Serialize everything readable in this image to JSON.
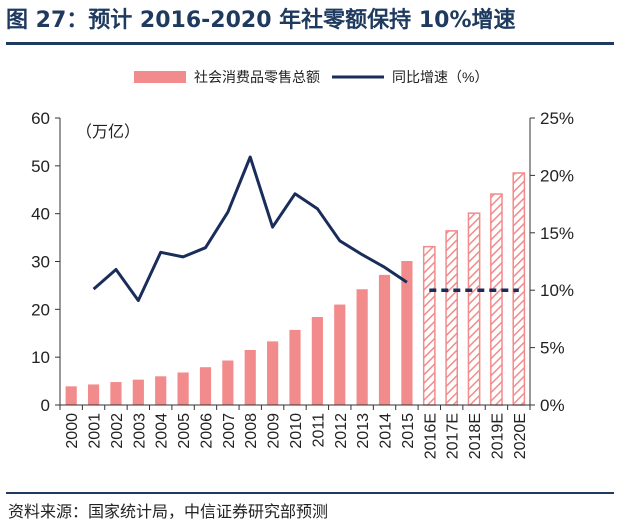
{
  "title": "图 27：预计 2016-2020 年社零额保持 10%增速",
  "source": "资料来源：国家统计局，中信证券研究部预测",
  "chart_data": {
    "type": "bar",
    "categories": [
      "2000",
      "2001",
      "2002",
      "2003",
      "2004",
      "2005",
      "2006",
      "2007",
      "2008",
      "2009",
      "2010",
      "2011",
      "2012",
      "2013",
      "2014",
      "2015",
      "2016E",
      "2017E",
      "2018E",
      "2019E",
      "2020E"
    ],
    "forecast_start_index": 16,
    "unit_label": "（万亿）",
    "series": [
      {
        "name": "社会消费品零售总额",
        "type": "bar",
        "axis": "left",
        "values": [
          3.9,
          4.3,
          4.8,
          5.3,
          6.0,
          6.8,
          7.9,
          9.3,
          11.5,
          13.3,
          15.7,
          18.4,
          21.0,
          24.2,
          27.2,
          30.1,
          33.1,
          36.4,
          40.1,
          44.1,
          48.5
        ]
      },
      {
        "name": "同比增速（%）",
        "type": "line",
        "axis": "right",
        "values": [
          null,
          10.1,
          11.8,
          9.1,
          13.3,
          12.9,
          13.7,
          16.8,
          21.6,
          15.5,
          18.4,
          17.1,
          14.3,
          13.1,
          12.0,
          10.7,
          10.0,
          10.0,
          10.0,
          10.0,
          10.0
        ]
      }
    ],
    "left_axis": {
      "min": 0,
      "max": 60,
      "ticks": [
        0,
        10,
        20,
        30,
        40,
        50,
        60
      ]
    },
    "right_axis": {
      "min": 0,
      "max": 25,
      "ticks": [
        "0%",
        "5%",
        "10%",
        "15%",
        "20%",
        "25%"
      ]
    },
    "colors": {
      "bar": "#f28b8b",
      "line": "#1a2d5a",
      "axis": "#333333"
    },
    "legend_position": "top"
  }
}
